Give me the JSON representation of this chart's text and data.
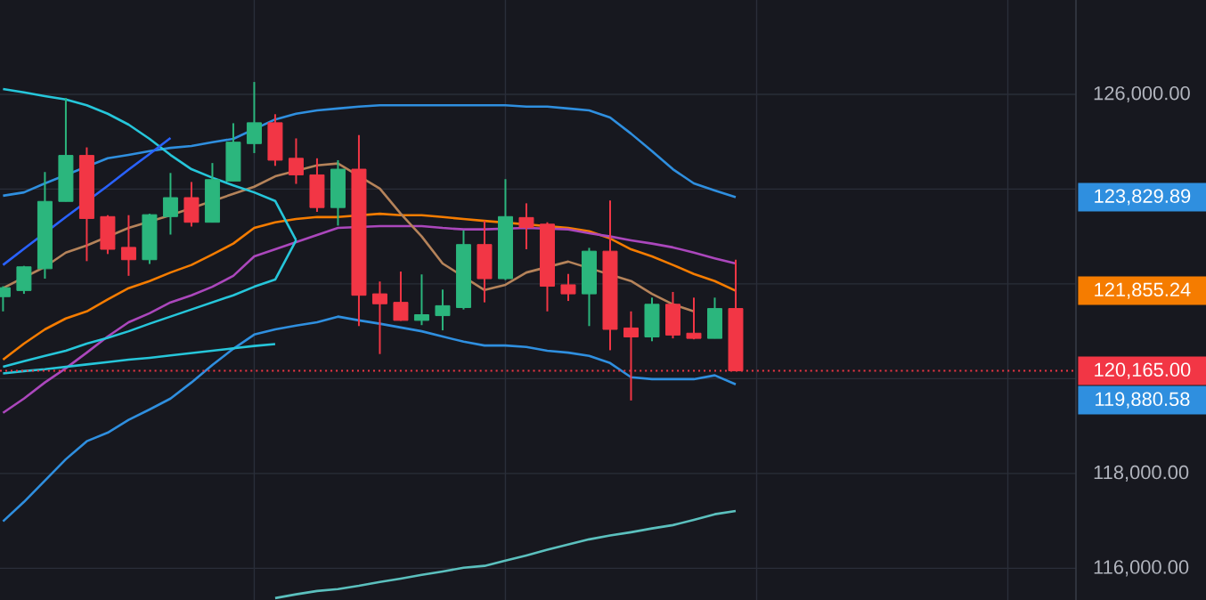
{
  "chart_data": {
    "type": "candlestick",
    "categories": [
      null,
      null,
      null,
      null,
      null,
      null,
      null,
      null,
      null,
      null,
      null,
      null,
      null,
      null,
      null,
      null,
      null,
      null,
      null,
      null,
      null,
      null,
      null,
      null,
      null,
      null,
      null,
      null,
      null,
      null,
      null,
      null,
      null,
      null,
      null,
      null
    ],
    "ohlc": [
      [
        121730,
        121950,
        121420,
        121920
      ],
      [
        121860,
        122380,
        121790,
        122360
      ],
      [
        122320,
        124360,
        122110,
        123740
      ],
      [
        123740,
        125920,
        123740,
        124710
      ],
      [
        124710,
        124880,
        122480,
        123380
      ],
      [
        123420,
        123450,
        122630,
        122730
      ],
      [
        122770,
        123450,
        122170,
        122510
      ],
      [
        122510,
        123480,
        122420,
        123460
      ],
      [
        123420,
        124340,
        123040,
        123820
      ],
      [
        123820,
        124150,
        123210,
        123300
      ],
      [
        123300,
        124550,
        123300,
        124200
      ],
      [
        124170,
        125390,
        124170,
        124990
      ],
      [
        124960,
        126260,
        124760,
        125400
      ],
      [
        125400,
        125580,
        124490,
        124610
      ],
      [
        124650,
        125070,
        124110,
        124300
      ],
      [
        124300,
        124650,
        123520,
        123610
      ],
      [
        123610,
        124610,
        123230,
        124420
      ],
      [
        124420,
        125140,
        121110,
        121760
      ],
      [
        121790,
        122050,
        120520,
        121580
      ],
      [
        121610,
        122260,
        121220,
        121230
      ],
      [
        121230,
        122200,
        121130,
        121350
      ],
      [
        121330,
        121880,
        121020,
        121540
      ],
      [
        121500,
        123130,
        121460,
        122830
      ],
      [
        122830,
        123330,
        121610,
        122110
      ],
      [
        122110,
        124210,
        122080,
        123420
      ],
      [
        123400,
        123700,
        122730,
        123190
      ],
      [
        123260,
        123300,
        121420,
        121950
      ],
      [
        121980,
        122210,
        121640,
        121790
      ],
      [
        121790,
        122760,
        121110,
        122690
      ],
      [
        122690,
        123760,
        120600,
        121040
      ],
      [
        121070,
        121420,
        119540,
        120880
      ],
      [
        120880,
        121710,
        120790,
        121570
      ],
      [
        121570,
        121830,
        120850,
        120920
      ],
      [
        120960,
        121710,
        120830,
        120850
      ],
      [
        120850,
        121710,
        120850,
        121480
      ],
      [
        121480,
        122510,
        120165,
        120165
      ]
    ],
    "colors": [
      "#2bb67d",
      "#2bb67d",
      "#2bb67d",
      "#2bb67d",
      "#f23645",
      "#f23645",
      "#f23645",
      "#2bb67d",
      "#2bb67d",
      "#f23645",
      "#2bb67d",
      "#2bb67d",
      "#2bb67d",
      "#f23645",
      "#f23645",
      "#f23645",
      "#2bb67d",
      "#f23645",
      "#f23645",
      "#f23645",
      "#2bb67d",
      "#2bb67d",
      "#2bb67d",
      "#f23645",
      "#2bb67d",
      "#f23645",
      "#f23645",
      "#f23645",
      "#2bb67d",
      "#f23645",
      "#f23645",
      "#2bb67d",
      "#f23645",
      "#f23645",
      "#2bb67d",
      "#f23645"
    ],
    "series": [
      {
        "type": "line",
        "color": "#2f8fdf",
        "values": [
          123860,
          123930,
          124120,
          null,
          null,
          124650,
          124720,
          124800,
          124870,
          124910,
          124990,
          125060,
          null,
          125470,
          125590,
          125660,
          125700,
          125740,
          125770,
          125770,
          125770,
          125770,
          125770,
          125770,
          125770,
          125740,
          125740,
          125700,
          125660,
          125510,
          125170,
          124800,
          124420,
          124120,
          123970,
          123829.89
        ]
      },
      {
        "type": "line",
        "color": "#2f8fdf",
        "values": [
          116990,
          117400,
          117850,
          118300,
          118680,
          118860,
          119130,
          119350,
          119580,
          119920,
          120290,
          120630,
          120930,
          121040,
          121120,
          121190,
          121310,
          121230,
          121160,
          121080,
          121000,
          120890,
          120780,
          120700,
          120700,
          120670,
          120590,
          120550,
          120480,
          120330,
          120030,
          119990,
          119990,
          119990,
          120070,
          119880.58
        ]
      },
      {
        "type": "line",
        "color": "#f57c00",
        "values": [
          120400,
          120740,
          121040,
          121270,
          121420,
          121670,
          121910,
          122060,
          122240,
          122400,
          122620,
          122850,
          123180,
          123300,
          123370,
          123410,
          123410,
          null,
          123480,
          123450,
          123450,
          123410,
          123370,
          123330,
          null,
          null,
          null,
          123180,
          123110,
          122960,
          122730,
          122580,
          122400,
          122210,
          122060,
          121855.24
        ]
      },
      {
        "type": "line",
        "color": "#ab47bc",
        "values": [
          119280,
          119580,
          119920,
          120220,
          120550,
          120890,
          121190,
          121380,
          121610,
          121760,
          121940,
          122170,
          122580,
          122730,
          122880,
          123030,
          123180,
          null,
          123220,
          123220,
          123220,
          123180,
          123150,
          123150,
          null,
          123180,
          null,
          123150,
          123070,
          123000,
          122920,
          122850,
          122770,
          122660,
          122540,
          122430
        ]
      },
      {
        "type": "line",
        "color": "#b5835a",
        "values": [
          121910,
          null,
          122360,
          122660,
          122810,
          null,
          123180,
          null,
          123450,
          null,
          null,
          123900,
          124050,
          124270,
          null,
          124500,
          124540,
          null,
          124010,
          123480,
          123000,
          122430,
          null,
          121870,
          121980,
          122240,
          null,
          122470,
          null,
          null,
          122060,
          121790,
          121570,
          121420,
          null,
          null
        ]
      },
      {
        "type": "line",
        "color": "#5bc0be",
        "values": [
          null,
          null,
          null,
          null,
          null,
          null,
          null,
          null,
          null,
          null,
          null,
          null,
          null,
          115370,
          115450,
          115520,
          115560,
          115630,
          115710,
          115780,
          115860,
          115930,
          116010,
          116050,
          116160,
          116270,
          116390,
          116500,
          116610,
          116690,
          116760,
          116840,
          116910,
          117020,
          117140,
          117210
        ]
      },
      {
        "type": "line",
        "color": "#26c6da",
        "values": [
          126110,
          126040,
          125960,
          125890,
          125770,
          125590,
          125360,
          125060,
          124720,
          124420,
          124240,
          124080,
          123930,
          123750,
          122920,
          null,
          null,
          null,
          null,
          null,
          null,
          null,
          null,
          null,
          null,
          null,
          null,
          null,
          null,
          null,
          null,
          null,
          null,
          null,
          null,
          null
        ]
      },
      {
        "type": "line",
        "color": "#26c6da",
        "values": [
          120250,
          120370,
          120480,
          120590,
          120740,
          120860,
          121000,
          121160,
          121310,
          121460,
          121610,
          121760,
          121940,
          122090,
          122920,
          null,
          null,
          null,
          null,
          null,
          null,
          null,
          null,
          null,
          null,
          null,
          null,
          null,
          null,
          null,
          null,
          null,
          null,
          null,
          null,
          null
        ]
      },
      {
        "type": "line",
        "color": "#26c6da",
        "values": [
          120110,
          120160,
          120200,
          120250,
          120300,
          120350,
          120400,
          120440,
          120490,
          120540,
          120590,
          120640,
          120690,
          120730,
          null,
          null,
          null,
          null,
          null,
          null,
          null,
          null,
          null,
          null,
          null,
          null,
          null,
          null,
          null,
          null,
          null,
          null,
          null,
          null,
          null,
          null
        ]
      },
      {
        "type": "line",
        "color": "#2962ff",
        "values": [
          122400,
          122740,
          null,
          123410,
          null,
          124070,
          124410,
          124740,
          125080,
          null,
          null,
          null,
          null,
          null,
          null,
          null,
          null,
          null,
          null,
          null,
          null,
          null,
          null,
          null,
          null,
          null,
          null,
          null,
          null,
          null,
          null,
          null,
          null,
          null,
          null,
          null
        ]
      }
    ],
    "ylim": [
      115330,
      127990
    ],
    "yticks": [
      {
        "value": 116000,
        "label": "116,000.00"
      },
      {
        "value": 118000,
        "label": "118,000.00"
      },
      {
        "value": 120000,
        "label": null
      },
      {
        "value": 122000,
        "label": null
      },
      {
        "value": 124000,
        "label": null
      },
      {
        "value": 126000,
        "label": "126,000.00"
      }
    ],
    "ref_lines": [
      {
        "axis": "y",
        "value": 120165,
        "label": "120,165.00",
        "color": "#f23645",
        "line_style": "dotted"
      }
    ],
    "annotations": [
      "123,829.89",
      "119,880.58",
      "121,855.24"
    ],
    "grid": true,
    "tick_labels": "y"
  }
}
